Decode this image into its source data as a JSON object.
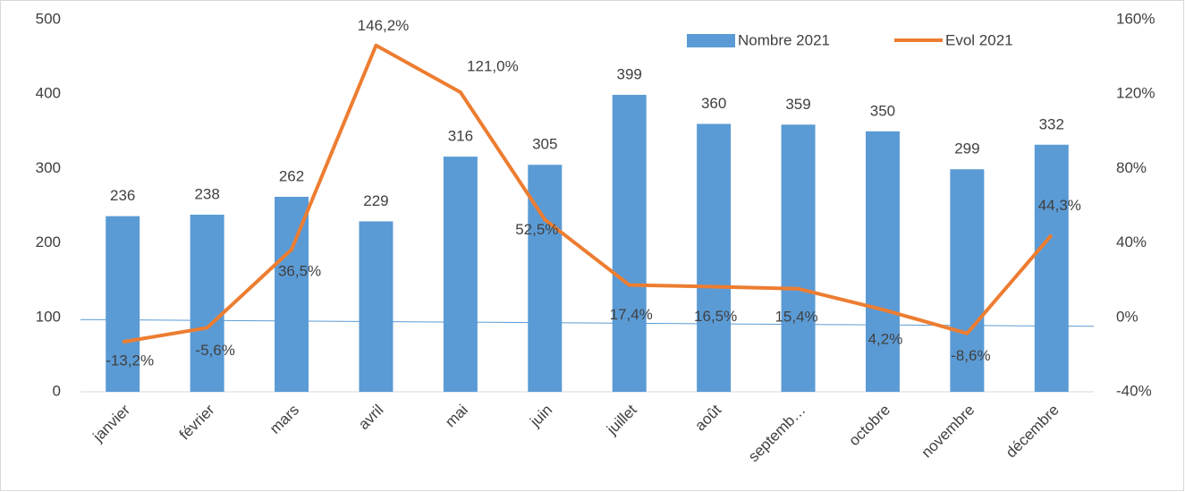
{
  "chart_data": {
    "type": "bar-line",
    "categories": [
      "janvier",
      "février",
      "mars",
      "avril",
      "mai",
      "juin",
      "juillet",
      "août",
      "septemb…",
      "octobre",
      "novembre",
      "décembre"
    ],
    "series": [
      {
        "name": "Nombre 2021",
        "type": "bar",
        "color": "#5b9bd5",
        "values": [
          236,
          238,
          262,
          229,
          316,
          305,
          399,
          360,
          359,
          350,
          299,
          332
        ]
      },
      {
        "name": "Evol 2021",
        "type": "line",
        "axis": "y2",
        "color": "#ed7d31",
        "values": [
          -13.2,
          -5.6,
          36.5,
          146.2,
          121.0,
          52.5,
          17.4,
          16.5,
          15.4,
          4.2,
          -8.6,
          44.3
        ],
        "value_labels": [
          "-13,2%",
          "-5,6%",
          "36,5%",
          "146,2%",
          "121,0%",
          "52,5%",
          "17,4%",
          "16,5%",
          "15,4%",
          "4,2%",
          "-8,6%",
          "44,3%"
        ]
      }
    ],
    "trendline": {
      "color": "#5b9bd5",
      "values": [
        97,
        88
      ]
    },
    "ylim": [
      0,
      500
    ],
    "yticks": [
      0,
      100,
      200,
      300,
      400,
      500
    ],
    "y2lim": [
      -40,
      160
    ],
    "y2ticks": [
      {
        "value": -40,
        "label": "-40%"
      },
      {
        "value": 0,
        "label": "0%"
      },
      {
        "value": 40,
        "label": "40%"
      },
      {
        "value": 80,
        "label": "80%"
      },
      {
        "value": 120,
        "label": "120%"
      },
      {
        "value": 160,
        "label": "160%"
      }
    ],
    "legend": "top-right"
  }
}
